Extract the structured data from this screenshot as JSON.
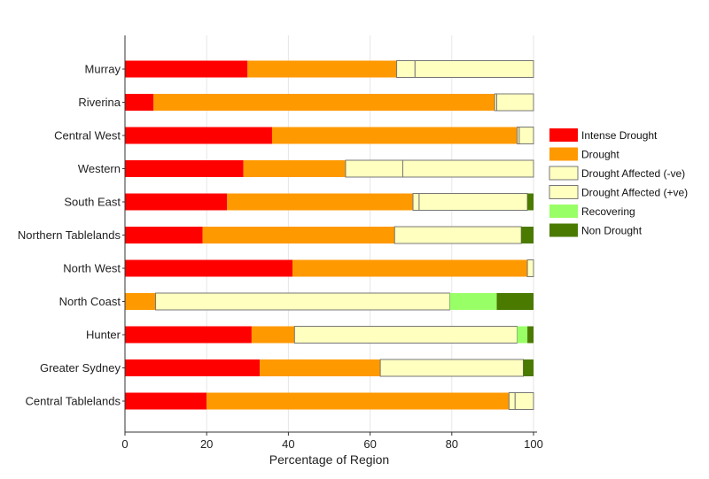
{
  "chart_data": {
    "type": "bar",
    "orientation": "horizontal",
    "stacked": true,
    "title": "",
    "xlabel": "Percentage of Region",
    "ylabel": "",
    "xlim": [
      0,
      100
    ],
    "xticks": [
      0,
      20,
      40,
      60,
      80,
      100
    ],
    "grid": "vertical gridlines",
    "legend_position": "right",
    "categories": [
      "Murray",
      "Riverina",
      "Central West",
      "Western",
      "South East",
      "Northern Tablelands",
      "North West",
      "North Coast",
      "Hunter",
      "Greater Sydney",
      "Central Tablelands"
    ],
    "series": [
      {
        "name": "Intense Drought",
        "color": "#ff0000",
        "values": [
          30,
          7,
          36,
          29,
          25,
          19,
          41,
          0,
          31,
          33,
          20
        ]
      },
      {
        "name": "Drought",
        "color": "#ff9900",
        "values": [
          36.5,
          83.5,
          60,
          25,
          45.5,
          47,
          57.5,
          7.5,
          10.5,
          29.5,
          74
        ]
      },
      {
        "name": "Drought Affected (-ve)",
        "color": "#ffffc0",
        "values": [
          4.5,
          0.5,
          0.5,
          14,
          1.5,
          0,
          0,
          72,
          0,
          0,
          1.5
        ]
      },
      {
        "name": "Drought Affected (+ve)",
        "color": "#ffffc0",
        "values": [
          29,
          9,
          3.5,
          32,
          26.5,
          31,
          1.5,
          0,
          54.5,
          35,
          4.5
        ]
      },
      {
        "name": "Recovering",
        "color": "#99ff66",
        "values": [
          0,
          0,
          0,
          0,
          0,
          0,
          0,
          11.5,
          2.5,
          0,
          0
        ]
      },
      {
        "name": "Non Drought",
        "color": "#4a7a00",
        "values": [
          0,
          0,
          0,
          0,
          1.5,
          3,
          0,
          9,
          1.5,
          2.5,
          0
        ]
      }
    ]
  }
}
